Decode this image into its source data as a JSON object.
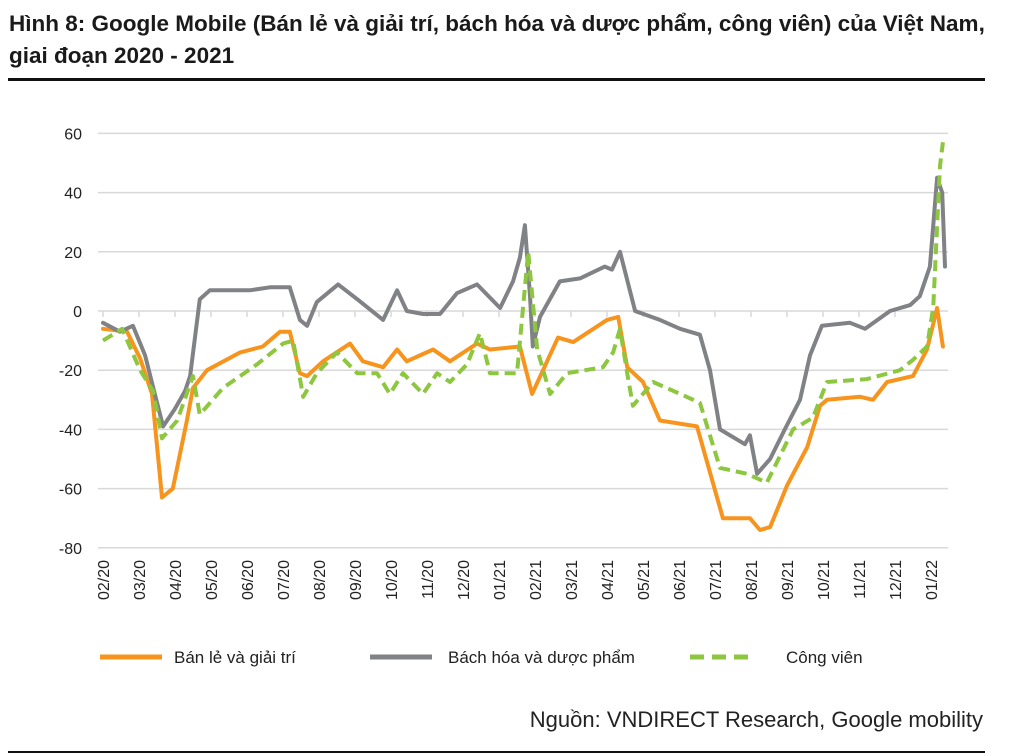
{
  "title": "Hình 8: Google Mobile (Bán lẻ và giải trí, bách hóa và dược phẩm, công viên) của Việt Nam, giai đoạn 2020 - 2021",
  "source": "Nguồn: VNDIRECT Research, Google mobility",
  "chart_data": {
    "type": "line",
    "title": "Hình 8: Google Mobile (Bán lẻ và giải trí, bách hóa và dược phẩm, công viên) của Việt Nam, giai đoạn 2020 - 2021",
    "xlabel": "",
    "ylabel": "",
    "x_unit": "months since 02/2020",
    "x_tick_labels": [
      "02/20",
      "03/20",
      "04/20",
      "05/20",
      "06/20",
      "07/20",
      "08/20",
      "09/20",
      "10/20",
      "11/20",
      "12/20",
      "01/21",
      "02/21",
      "03/21",
      "04/21",
      "05/21",
      "06/21",
      "07/21",
      "08/21",
      "09/21",
      "10/21",
      "11/21",
      "12/21",
      "01/22"
    ],
    "xlim": [
      0,
      23.4
    ],
    "ylim": [
      -80,
      60
    ],
    "yticks": [
      60,
      40,
      20,
      0,
      -20,
      -40,
      -60,
      -80
    ],
    "grid": true,
    "legend_position": "bottom",
    "series": [
      {
        "name": "Bán lẻ và giải trí",
        "color": "#f7941d",
        "style": "solid",
        "x": [
          0,
          0.67,
          1.03,
          1.36,
          1.64,
          1.94,
          2.33,
          2.5,
          2.89,
          3.81,
          4.44,
          4.92,
          5.19,
          5.47,
          5.67,
          6.11,
          6.86,
          7.22,
          7.78,
          8.17,
          8.44,
          9.17,
          9.64,
          10.39,
          10.75,
          11.58,
          11.92,
          12.64,
          13.06,
          14.0,
          14.31,
          14.56,
          15.0,
          15.47,
          16.5,
          17.22,
          17.97,
          18.25,
          18.53,
          19.0,
          19.56,
          19.92,
          20.11,
          21.03,
          21.39,
          21.78,
          22.5,
          22.89,
          23.17,
          23.33
        ],
        "y": [
          -6,
          -7,
          -16,
          -28,
          -63,
          -60,
          -37,
          -26,
          -20,
          -14,
          -12,
          -7,
          -7,
          -21,
          -22,
          -17,
          -11,
          -17,
          -19,
          -13,
          -17,
          -13,
          -17,
          -11,
          -13,
          -12,
          -28,
          -9,
          -10.5,
          -3,
          -2,
          -19,
          -24,
          -37,
          -39,
          -70,
          -70,
          -74,
          -73,
          -59,
          -46,
          -32,
          -30,
          -29,
          -30,
          -24,
          -22,
          -13,
          1,
          -12
        ]
      },
      {
        "name": "Bách hóa và dược phẩm",
        "color": "#808285",
        "style": "solid",
        "x": [
          0,
          0.47,
          0.83,
          1.17,
          1.44,
          1.67,
          2.0,
          2.28,
          2.42,
          2.69,
          2.97,
          3.53,
          4.08,
          4.64,
          5.19,
          5.47,
          5.67,
          5.94,
          6.53,
          7.06,
          7.78,
          8.17,
          8.44,
          8.89,
          9.36,
          9.83,
          10.39,
          11.03,
          11.39,
          11.58,
          11.72,
          11.86,
          11.94,
          12.14,
          12.69,
          13.25,
          13.94,
          14.14,
          14.36,
          14.78,
          15.47,
          16.03,
          16.58,
          16.86,
          17.14,
          17.83,
          17.97,
          18.17,
          18.53,
          18.94,
          19.36,
          19.64,
          19.97,
          20.75,
          21.17,
          21.86,
          22.42,
          22.69,
          22.97,
          23.17,
          23.31,
          23.39
        ],
        "y": [
          -4,
          -7,
          -5,
          -15,
          -28,
          -39,
          -33,
          -27,
          -22,
          4,
          7,
          7,
          7,
          8,
          8,
          -3,
          -5,
          3,
          9,
          4,
          -3,
          7,
          0,
          -1,
          -1,
          6,
          9,
          1,
          10,
          18,
          29,
          5,
          -12,
          -2,
          10,
          11,
          15,
          14,
          20,
          0,
          -3,
          -6,
          -8,
          -20,
          -40,
          -45,
          -42,
          -55,
          -50,
          -40,
          -30,
          -15,
          -5,
          -4,
          -6,
          0,
          2,
          5,
          15,
          45,
          40,
          15
        ]
      },
      {
        "name": "Công viên",
        "color": "#8dc63f",
        "style": "dashed",
        "x": [
          0,
          0.53,
          1.03,
          1.39,
          1.64,
          2.06,
          2.5,
          2.69,
          3.33,
          4.28,
          5.0,
          5.28,
          5.56,
          5.94,
          6.5,
          7.06,
          7.61,
          7.97,
          8.33,
          8.89,
          9.28,
          9.64,
          10.11,
          10.47,
          10.75,
          11.5,
          11.81,
          12.06,
          12.42,
          12.89,
          13.89,
          14.17,
          14.36,
          14.56,
          14.72,
          15.28,
          16.03,
          16.58,
          17.14,
          17.89,
          18.44,
          19.17,
          19.72,
          20.11,
          21.22,
          22.14,
          22.5,
          22.89,
          23.06,
          23.25,
          23.33
        ],
        "y": [
          -10,
          -6,
          -20,
          -27,
          -43,
          -37,
          -22,
          -35,
          -26,
          -18,
          -11,
          -10,
          -29,
          -21,
          -14,
          -21,
          -21,
          -28,
          -21,
          -28,
          -21,
          -24,
          -18,
          -7.5,
          -21,
          -21,
          20,
          -13,
          -28,
          -21,
          -19,
          -14,
          -6,
          -21,
          -32,
          -24,
          -28,
          -31,
          -53,
          -55,
          -58,
          -40,
          -36,
          -24,
          -23,
          -20,
          -16.5,
          -12,
          1,
          49,
          57
        ]
      }
    ]
  }
}
